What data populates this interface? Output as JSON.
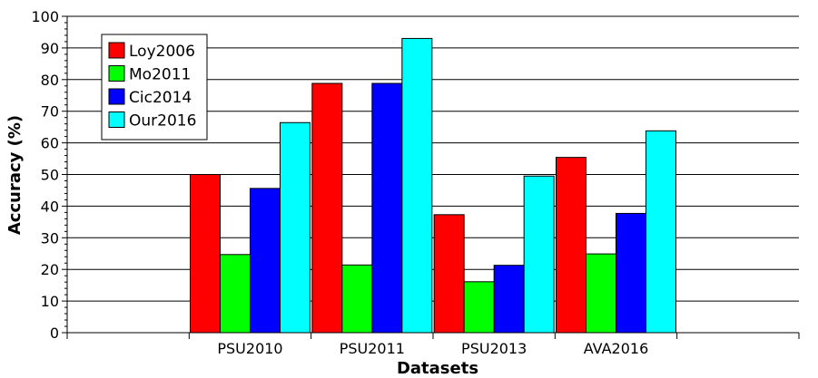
{
  "chart_data": {
    "type": "bar",
    "xlabel": "Datasets",
    "ylabel": "Accuracy (%)",
    "ylim": [
      0,
      100
    ],
    "yticks": [
      0,
      10,
      20,
      30,
      40,
      50,
      60,
      70,
      80,
      90,
      100
    ],
    "grid": true,
    "legend_position": "top-left",
    "categories": [
      "PSU2010",
      "PSU2011",
      "PSU2013",
      "AVA2016"
    ],
    "series": [
      {
        "name": "Loy2006",
        "color": "#ff0000",
        "values": [
          50,
          78.8,
          37.3,
          55.4
        ]
      },
      {
        "name": "Mo2011",
        "color": "#00ff00",
        "values": [
          24.7,
          21.4,
          16.1,
          24.9
        ]
      },
      {
        "name": "Cic2014",
        "color": "#0000ff",
        "values": [
          45.6,
          78.8,
          21.3,
          37.7
        ]
      },
      {
        "name": "Our2016",
        "color": "#00ffff",
        "values": [
          66.4,
          93,
          49.5,
          63.8
        ]
      }
    ]
  }
}
